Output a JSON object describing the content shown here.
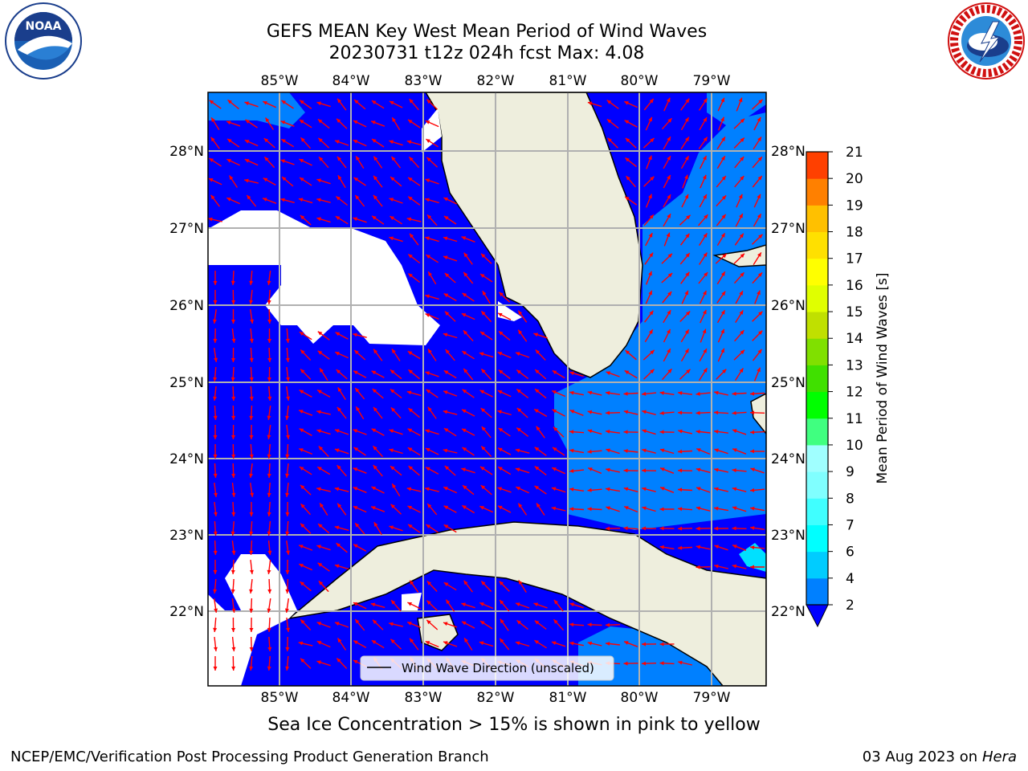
{
  "header": {
    "title_line1": "GEFS MEAN Key West Mean Period of Wind Waves",
    "title_line2": "20230731 t12z 024h fcst   Max: 4.08"
  },
  "logos": {
    "left": {
      "name": "NOAA",
      "text": "NOAA",
      "ring_text": "NATIONAL OCEANIC AND ATMOSPHERIC ADMINISTRATION · U.S. DEPARTMENT OF COMMERCE"
    },
    "right": {
      "name": "National Weather Service",
      "ring_text": "NATIONAL WEATHER SERVICE"
    }
  },
  "map": {
    "longitude_labels": [
      "85°W",
      "84°W",
      "83°W",
      "82°W",
      "81°W",
      "80°W",
      "79°W"
    ],
    "latitude_labels": [
      "28°N",
      "27°N",
      "26°N",
      "25°N",
      "24°N",
      "23°N",
      "22°N"
    ],
    "legend_label": "Wind Wave Direction (unscaled)",
    "colors": {
      "ocean_low": "#0000ff",
      "ocean_mid": "#0080ff",
      "ocean_high": "#00e0ff",
      "land": "#eeeedd",
      "arrows": "#ff0000",
      "grid": "#b0b0b0"
    }
  },
  "colorbar": {
    "label": "Mean Period of Wind Waves [s]",
    "ticks": [
      "2",
      "4",
      "6",
      "7",
      "8",
      "9",
      "10",
      "11",
      "12",
      "13",
      "14",
      "15",
      "16",
      "17",
      "18",
      "19",
      "20",
      "21"
    ],
    "colors": [
      "#0080ff",
      "#00ccff",
      "#00ffff",
      "#40ffff",
      "#80ffff",
      "#a0ffff",
      "#40ff80",
      "#00ff00",
      "#40e000",
      "#80e000",
      "#c0e000",
      "#e0ff00",
      "#ffff00",
      "#ffe000",
      "#ffc000",
      "#ff8000",
      "#ff4000",
      "#ff0000"
    ],
    "extend_color": "#0000ff"
  },
  "subtitle": "Sea Ice Concentration > 15% is shown in pink to yellow",
  "footer": {
    "left": "NCEP/EMC/Verification Post Processing Product Generation Branch",
    "date": "03 Aug 2023 on",
    "host": "Hera"
  }
}
